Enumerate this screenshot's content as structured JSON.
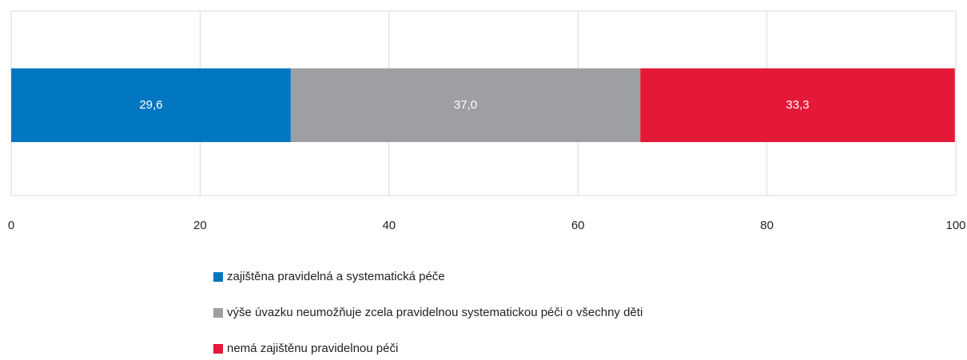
{
  "chart_data": {
    "type": "stacked-bar-horizontal",
    "categories": [
      null
    ],
    "series": [
      {
        "name": "zajištěna pravidelná a systematická péče",
        "color": "#0077c0",
        "values": [
          29.6
        ],
        "value_labels": [
          "29,6"
        ]
      },
      {
        "name": "výše úvazku neumožňuje zcela pravidelnou systematickou péči o všechny děti",
        "color": "#9d9fa2",
        "values": [
          37.0
        ],
        "value_labels": [
          "37,0"
        ]
      },
      {
        "name": "nemá zajištěnu pravidelnou péči",
        "color": "#e31937",
        "values": [
          33.3
        ],
        "value_labels": [
          "33,3"
        ]
      }
    ],
    "xlim": [
      0,
      100
    ],
    "xticks": [
      0,
      20,
      40,
      60,
      80,
      100
    ],
    "grid": true,
    "legend": "bottom"
  }
}
